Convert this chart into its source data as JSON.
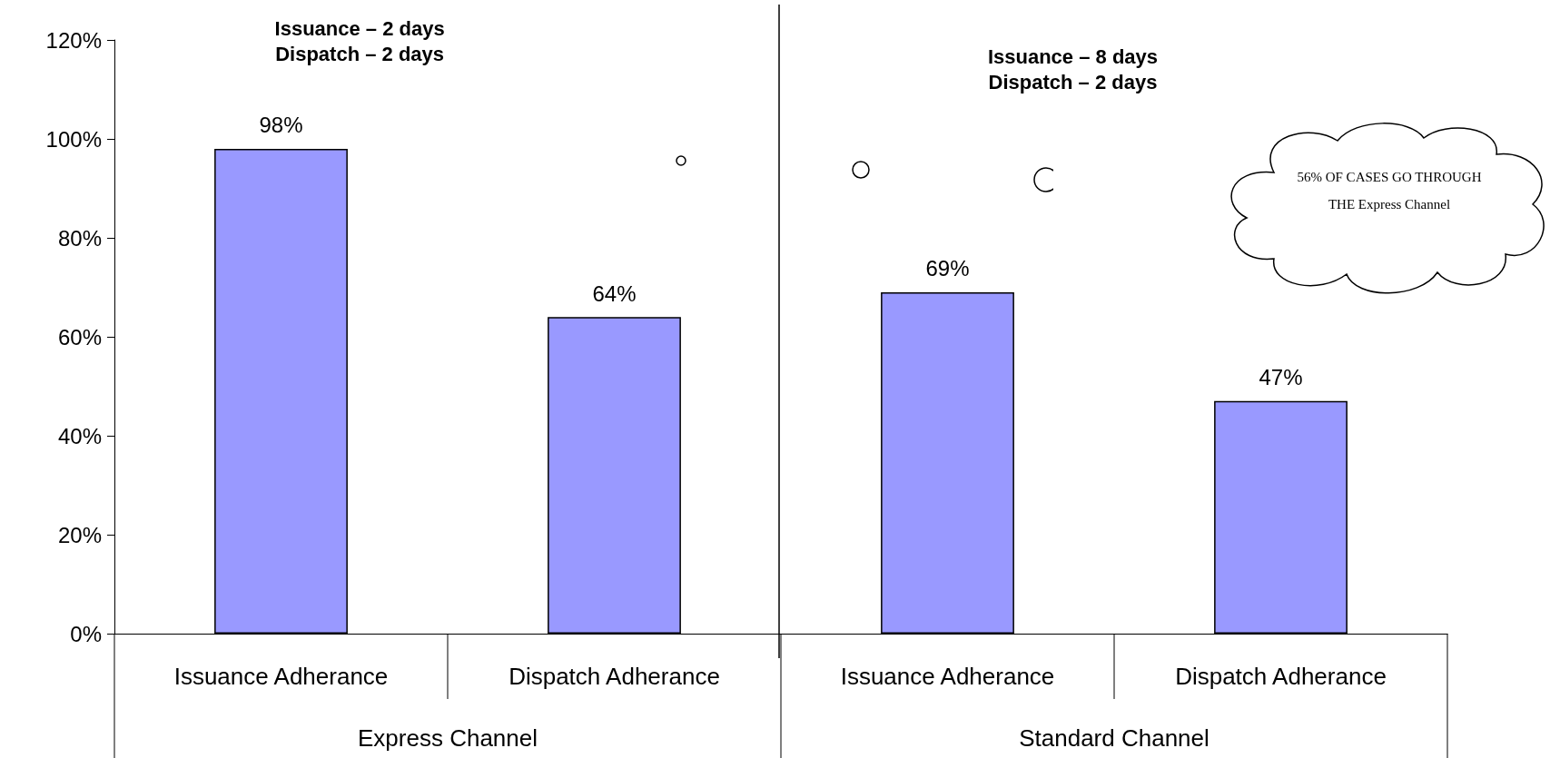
{
  "chart_data": {
    "type": "bar",
    "categories": [
      "Issuance Adherance",
      "Dispatch Adherance",
      "Issuance Adherance",
      "Dispatch Adherance"
    ],
    "values": [
      98,
      64,
      69,
      47
    ],
    "value_labels": [
      "98%",
      "64%",
      "69%",
      "47%"
    ],
    "color": "#9999ff",
    "ylim": [
      0,
      120
    ],
    "yticks": [
      {
        "value": 0,
        "label": "0%"
      },
      {
        "value": 20,
        "label": "20%"
      },
      {
        "value": 40,
        "label": "40%"
      },
      {
        "value": 60,
        "label": "60%"
      },
      {
        "value": 80,
        "label": "80%"
      },
      {
        "value": 100,
        "label": "100%"
      },
      {
        "value": 120,
        "label": "120%"
      }
    ],
    "grid": false,
    "annotations": [
      "Issuance – 2 days\nDispatch – 2 days",
      "Issuance – 8 days\nDispatch – 2 days",
      "56% OF CASES GO THROUGH THE Express Channel",
      "Express Channel",
      "Standard Channel"
    ]
  }
}
